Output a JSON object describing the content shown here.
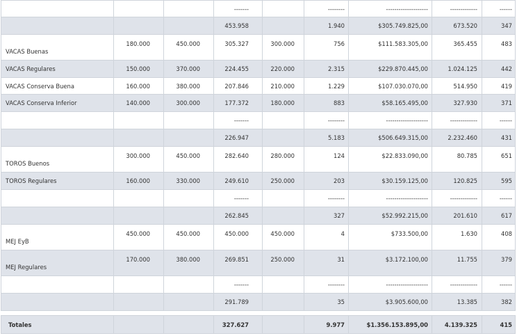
{
  "table": {
    "rows": [
      [
        null,
        null,
        null,
        "-------",
        null,
        "--------",
        "--------------------",
        "-------------",
        "------"
      ],
      [
        null,
        null,
        null,
        "453.958",
        null,
        "1.940",
        "$305.749.825,00",
        "673.520",
        "347"
      ],
      [
        "VACAS Buenas",
        "180.000",
        "450.000",
        "305.327",
        "300.000",
        "756",
        "$111.583.305,00",
        "365.455",
        "483"
      ],
      [
        "VACAS Regulares",
        "150.000",
        "370.000",
        "224.455",
        "220.000",
        "2.315",
        "$229.870.445,00",
        "1.024.125",
        "442"
      ],
      [
        "VACAS Conserva Buena",
        "160.000",
        "380.000",
        "207.846",
        "210.000",
        "1.229",
        "$107.030.070,00",
        "514.950",
        "419"
      ],
      [
        "VACAS Conserva Inferior",
        "140.000",
        "300.000",
        "177.372",
        "180.000",
        "883",
        "$58.165.495,00",
        "327.930",
        "371"
      ],
      [
        null,
        null,
        null,
        "-------",
        null,
        "--------",
        "--------------------",
        "-------------",
        "------"
      ],
      [
        null,
        null,
        null,
        "226.947",
        null,
        "5.183",
        "$506.649.315,00",
        "2.232.460",
        "431"
      ],
      [
        "TOROS Buenos",
        "300.000",
        "450.000",
        "282.640",
        "280.000",
        "124",
        "$22.833.090,00",
        "80.785",
        "651"
      ],
      [
        "TOROS Regulares",
        "160.000",
        "330.000",
        "249.610",
        "250.000",
        "203",
        "$30.159.125,00",
        "120.825",
        "595"
      ],
      [
        null,
        null,
        null,
        "-------",
        null,
        "--------",
        "--------------------",
        "-------------",
        "------"
      ],
      [
        null,
        null,
        null,
        "262.845",
        null,
        "327",
        "$52.992.215,00",
        "201.610",
        "617"
      ],
      [
        "MEJ EyB",
        "450.000",
        "450.000",
        "450.000",
        "450.000",
        "4",
        "$733.500,00",
        "1.630",
        "408"
      ],
      [
        "MEJ Regulares",
        "170.000",
        "380.000",
        "269.851",
        "250.000",
        "31",
        "$3.172.100,00",
        "11.755",
        "379"
      ],
      [
        null,
        null,
        null,
        "-------",
        null,
        "--------",
        "--------------------",
        "-------------",
        "------"
      ],
      [
        null,
        null,
        null,
        "291.789",
        null,
        "35",
        "$3.905.600,00",
        "13.385",
        "382"
      ]
    ],
    "totals": [
      "Totales",
      null,
      null,
      "327.627",
      null,
      "9.977",
      "$1.356.153.895,00",
      "4.139.325",
      "415"
    ]
  }
}
